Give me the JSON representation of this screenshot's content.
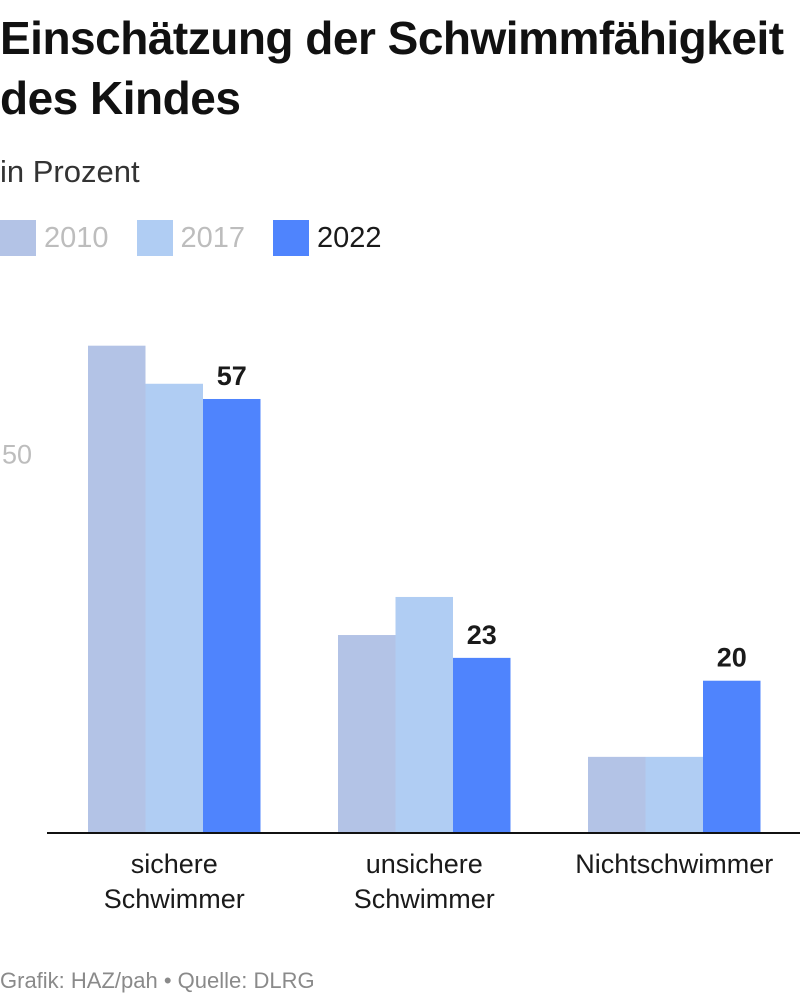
{
  "title": "Einschätzung der Schwimmfähigkeit des Kindes",
  "subtitle": "in Prozent",
  "footer": "Grafik: HAZ/pah • Quelle: DLRG",
  "colors": {
    "series_2010": "#b3c3e6",
    "series_2017": "#b0cdf3",
    "series_2022": "#4f84fd",
    "axis": "#111111",
    "tick_label": "#bdbdbd"
  },
  "chart_data": {
    "type": "bar",
    "categories": [
      [
        "sichere",
        "Schwimmer"
      ],
      [
        "unsichere",
        "Schwimmer"
      ],
      [
        "Nichtschwimmer"
      ]
    ],
    "series": [
      {
        "name": "2010",
        "values": [
          64,
          26,
          10
        ]
      },
      {
        "name": "2017",
        "values": [
          59,
          31,
          10
        ]
      },
      {
        "name": "2022",
        "values": [
          57,
          23,
          20
        ]
      }
    ],
    "data_labels": {
      "series": "2022",
      "labels": [
        "57",
        "23",
        "20"
      ]
    },
    "yticks": [
      {
        "value": 50,
        "label": "50"
      }
    ],
    "ylim": [
      0,
      70
    ],
    "grid": false,
    "legend_position": "top-left"
  }
}
